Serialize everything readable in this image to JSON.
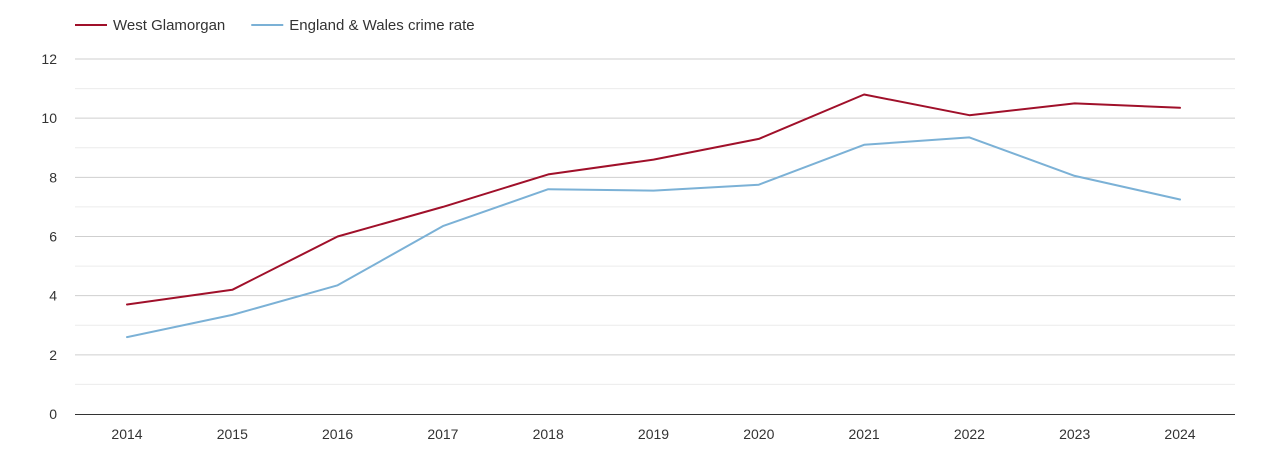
{
  "chart_data": {
    "type": "line",
    "title": "",
    "xlabel": "",
    "ylabel": "",
    "x": [
      "2014",
      "2015",
      "2016",
      "2017",
      "2018",
      "2019",
      "2020",
      "2021",
      "2022",
      "2023",
      "2024"
    ],
    "ylim": [
      0,
      12
    ],
    "y_ticks": [
      0,
      2,
      4,
      6,
      8,
      10,
      12
    ],
    "grid": true,
    "legend_position": "top-left",
    "series": [
      {
        "name": "West Glamorgan",
        "color": "#a0102a",
        "values": [
          3.7,
          4.2,
          6.0,
          7.0,
          8.1,
          8.6,
          9.3,
          10.8,
          10.1,
          10.5,
          10.35
        ]
      },
      {
        "name": "England & Wales crime rate",
        "color": "#7bb1d6",
        "values": [
          2.6,
          3.35,
          4.35,
          6.35,
          7.6,
          7.55,
          7.75,
          9.1,
          9.35,
          8.05,
          7.25
        ]
      }
    ]
  }
}
